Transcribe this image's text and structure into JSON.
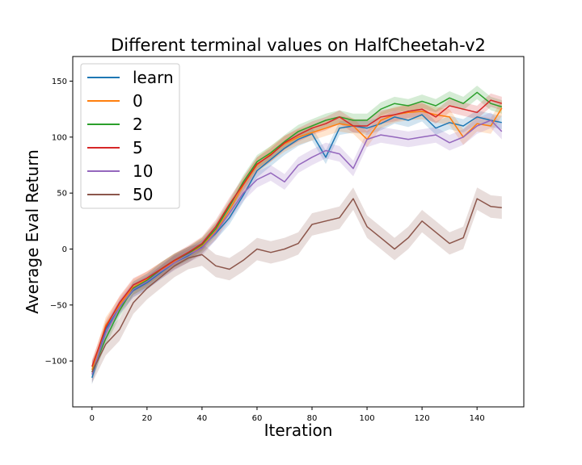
{
  "chart_data": {
    "type": "line",
    "title": "Different terminal values on HalfCheetah-v2",
    "xlabel": "Iteration",
    "ylabel": "Average Eval Return",
    "xlim": [
      -7,
      157
    ],
    "ylim": [
      -141,
      172
    ],
    "xticks": [
      0,
      20,
      40,
      60,
      80,
      100,
      120,
      140
    ],
    "yticks": [
      -100,
      -50,
      0,
      50,
      100,
      150
    ],
    "xtick_labels": [
      "0",
      "20",
      "40",
      "60",
      "80",
      "100",
      "120",
      "140"
    ],
    "ytick_labels": [
      "−100",
      "−50",
      "0",
      "50",
      "100",
      "150"
    ],
    "grid": false,
    "legend_position": "top-left",
    "shaded_bands": true,
    "x": [
      0,
      5,
      10,
      15,
      20,
      25,
      30,
      35,
      40,
      45,
      50,
      55,
      60,
      65,
      70,
      75,
      80,
      85,
      90,
      95,
      100,
      105,
      110,
      115,
      120,
      125,
      130,
      135,
      140,
      145,
      149
    ],
    "series": [
      {
        "name": "learn",
        "color": "#1f77b4",
        "band": 6,
        "values": [
          -115,
          -72,
          -52,
          -37,
          -30,
          -21,
          -12,
          -6,
          2,
          14,
          28,
          48,
          70,
          80,
          90,
          98,
          103,
          82,
          108,
          110,
          108,
          112,
          118,
          115,
          120,
          108,
          113,
          110,
          118,
          115,
          113
        ]
      },
      {
        "name": "0",
        "color": "#ff7f0e",
        "band": 7,
        "values": [
          -108,
          -68,
          -50,
          -34,
          -27,
          -19,
          -11,
          -5,
          3,
          16,
          35,
          57,
          75,
          85,
          94,
          100,
          104,
          108,
          112,
          110,
          98,
          115,
          120,
          122,
          123,
          120,
          118,
          100,
          112,
          110,
          126
        ]
      },
      {
        "name": "2",
        "color": "#2ca02c",
        "band": 6,
        "values": [
          -110,
          -80,
          -55,
          -35,
          -28,
          -18,
          -10,
          -4,
          4,
          18,
          38,
          60,
          78,
          86,
          96,
          105,
          110,
          115,
          118,
          115,
          115,
          125,
          130,
          128,
          132,
          128,
          135,
          130,
          140,
          130,
          127
        ]
      },
      {
        "name": "5",
        "color": "#d62728",
        "band": 6,
        "values": [
          -105,
          -70,
          -48,
          -32,
          -26,
          -18,
          -10,
          -3,
          5,
          20,
          40,
          58,
          76,
          84,
          95,
          102,
          108,
          112,
          118,
          110,
          110,
          118,
          120,
          123,
          125,
          118,
          128,
          125,
          122,
          133,
          130
        ]
      },
      {
        "name": "10",
        "color": "#9467bd",
        "band": 7,
        "values": [
          -112,
          -75,
          -52,
          -36,
          -29,
          -20,
          -12,
          -5,
          1,
          15,
          32,
          50,
          62,
          68,
          60,
          75,
          82,
          88,
          85,
          72,
          98,
          102,
          100,
          98,
          100,
          102,
          95,
          100,
          110,
          115,
          105
        ]
      },
      {
        "name": "50",
        "color": "#8c564b",
        "band": 10,
        "values": [
          -110,
          -85,
          -72,
          -48,
          -35,
          -25,
          -15,
          -8,
          -5,
          -15,
          -18,
          -10,
          0,
          -3,
          0,
          5,
          22,
          25,
          28,
          45,
          20,
          10,
          0,
          10,
          25,
          15,
          5,
          10,
          45,
          38,
          37
        ]
      }
    ]
  }
}
